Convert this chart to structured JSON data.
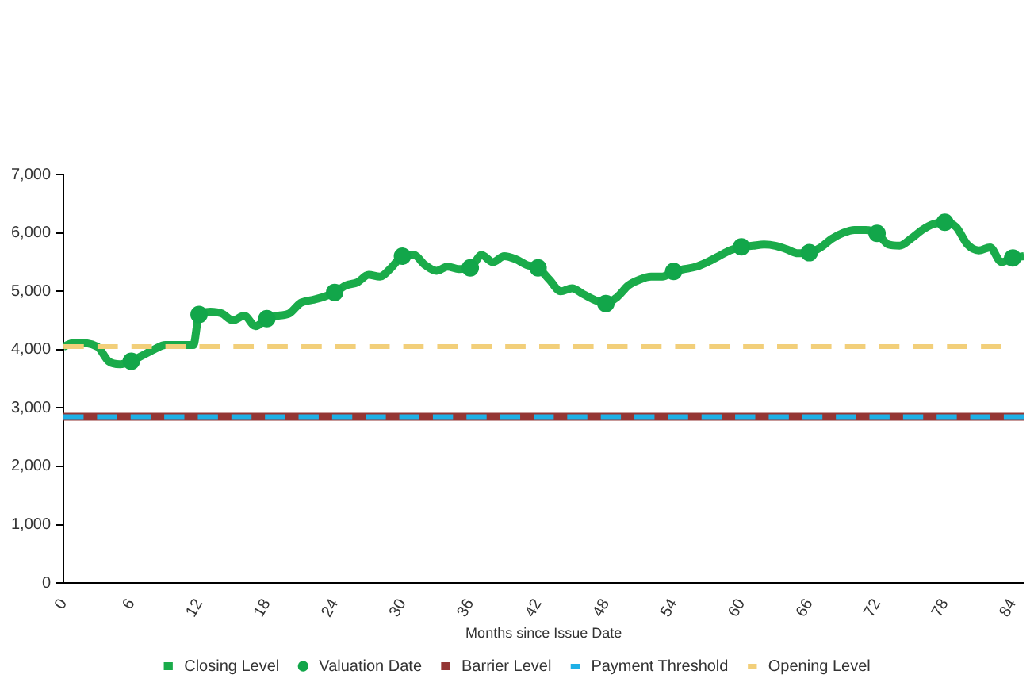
{
  "chart_data": {
    "type": "line",
    "xlabel": "Months since Issue Date",
    "xlim": [
      0,
      85
    ],
    "xticks": [
      0,
      6,
      12,
      18,
      24,
      30,
      36,
      42,
      48,
      54,
      60,
      66,
      72,
      78,
      84
    ],
    "ylim": [
      0,
      7000
    ],
    "yticks": [
      0,
      {
        "value": 1000,
        "label": "1,000"
      },
      {
        "value": 2000,
        "label": "2,000"
      },
      {
        "value": 3000,
        "label": "3,000"
      },
      {
        "value": 4000,
        "label": "4,000"
      },
      {
        "value": 5000,
        "label": "5,000"
      },
      {
        "value": 6000,
        "label": "6,000"
      },
      {
        "value": 7000,
        "label": "7,000"
      }
    ],
    "grid": false,
    "legend": "bottom",
    "series": [
      {
        "name": "Closing Level",
        "type": "line",
        "color": "#1aab4a",
        "marker": "none",
        "line_style": "solid",
        "x": [
          0,
          1,
          3,
          4,
          5,
          6,
          7,
          8,
          9,
          11.5,
          12,
          13,
          14,
          15,
          16,
          17,
          18,
          19,
          20,
          21,
          22,
          23,
          24,
          25,
          26,
          27,
          28,
          29,
          30,
          31,
          32,
          33,
          34,
          35,
          36,
          37,
          38,
          39,
          40,
          41,
          42,
          43,
          44,
          45,
          46,
          47,
          48,
          49,
          50,
          51,
          52,
          53,
          54,
          55,
          56,
          57,
          58,
          59,
          60,
          61,
          62,
          63,
          64,
          65,
          66,
          67,
          68,
          69,
          70,
          71,
          72,
          73,
          74,
          75,
          76,
          77,
          78,
          79,
          80,
          81,
          82,
          83,
          84,
          85
        ],
        "values": [
          4050,
          4120,
          4050,
          3800,
          3750,
          3800,
          3900,
          4000,
          4080,
          4080,
          4600,
          4650,
          4620,
          4500,
          4580,
          4400,
          4530,
          4580,
          4620,
          4800,
          4850,
          4900,
          4980,
          5100,
          5150,
          5280,
          5250,
          5400,
          5600,
          5620,
          5450,
          5350,
          5420,
          5380,
          5400,
          5620,
          5500,
          5600,
          5550,
          5450,
          5400,
          5200,
          5000,
          5050,
          4950,
          4850,
          4790,
          4900,
          5100,
          5200,
          5250,
          5250,
          5340,
          5380,
          5420,
          5500,
          5600,
          5700,
          5760,
          5780,
          5800,
          5780,
          5720,
          5650,
          5660,
          5750,
          5900,
          6000,
          6050,
          6050,
          5990,
          5800,
          5780,
          5900,
          6050,
          6150,
          6180,
          6100,
          5800,
          5700,
          5750,
          5500,
          5570,
          5600
        ]
      },
      {
        "name": "Valuation Date",
        "type": "scatter",
        "color": "#12a64a",
        "marker": "circle",
        "x": [
          6,
          12,
          18,
          24,
          30,
          36,
          42,
          48,
          54,
          60,
          66,
          72,
          78,
          84
        ],
        "values": [
          3800,
          4600,
          4530,
          4980,
          5600,
          5400,
          5400,
          4790,
          5340,
          5760,
          5660,
          5990,
          6180,
          5570
        ]
      },
      {
        "name": "Barrier Level",
        "type": "line",
        "color": "#943634",
        "marker": "none",
        "line_style": "solid",
        "x": [
          0,
          85
        ],
        "values": [
          2850,
          2850
        ]
      },
      {
        "name": "Payment Threshold",
        "type": "line",
        "color": "#1fb0e6",
        "marker": "none",
        "line_style": "dashed",
        "x": [
          0,
          85
        ],
        "values": [
          2850,
          2850
        ]
      },
      {
        "name": "Opening Level",
        "type": "line",
        "color": "#f2cf7a",
        "marker": "none",
        "line_style": "dashed",
        "x": [
          0,
          83
        ],
        "values": [
          4050,
          4050
        ]
      }
    ]
  }
}
